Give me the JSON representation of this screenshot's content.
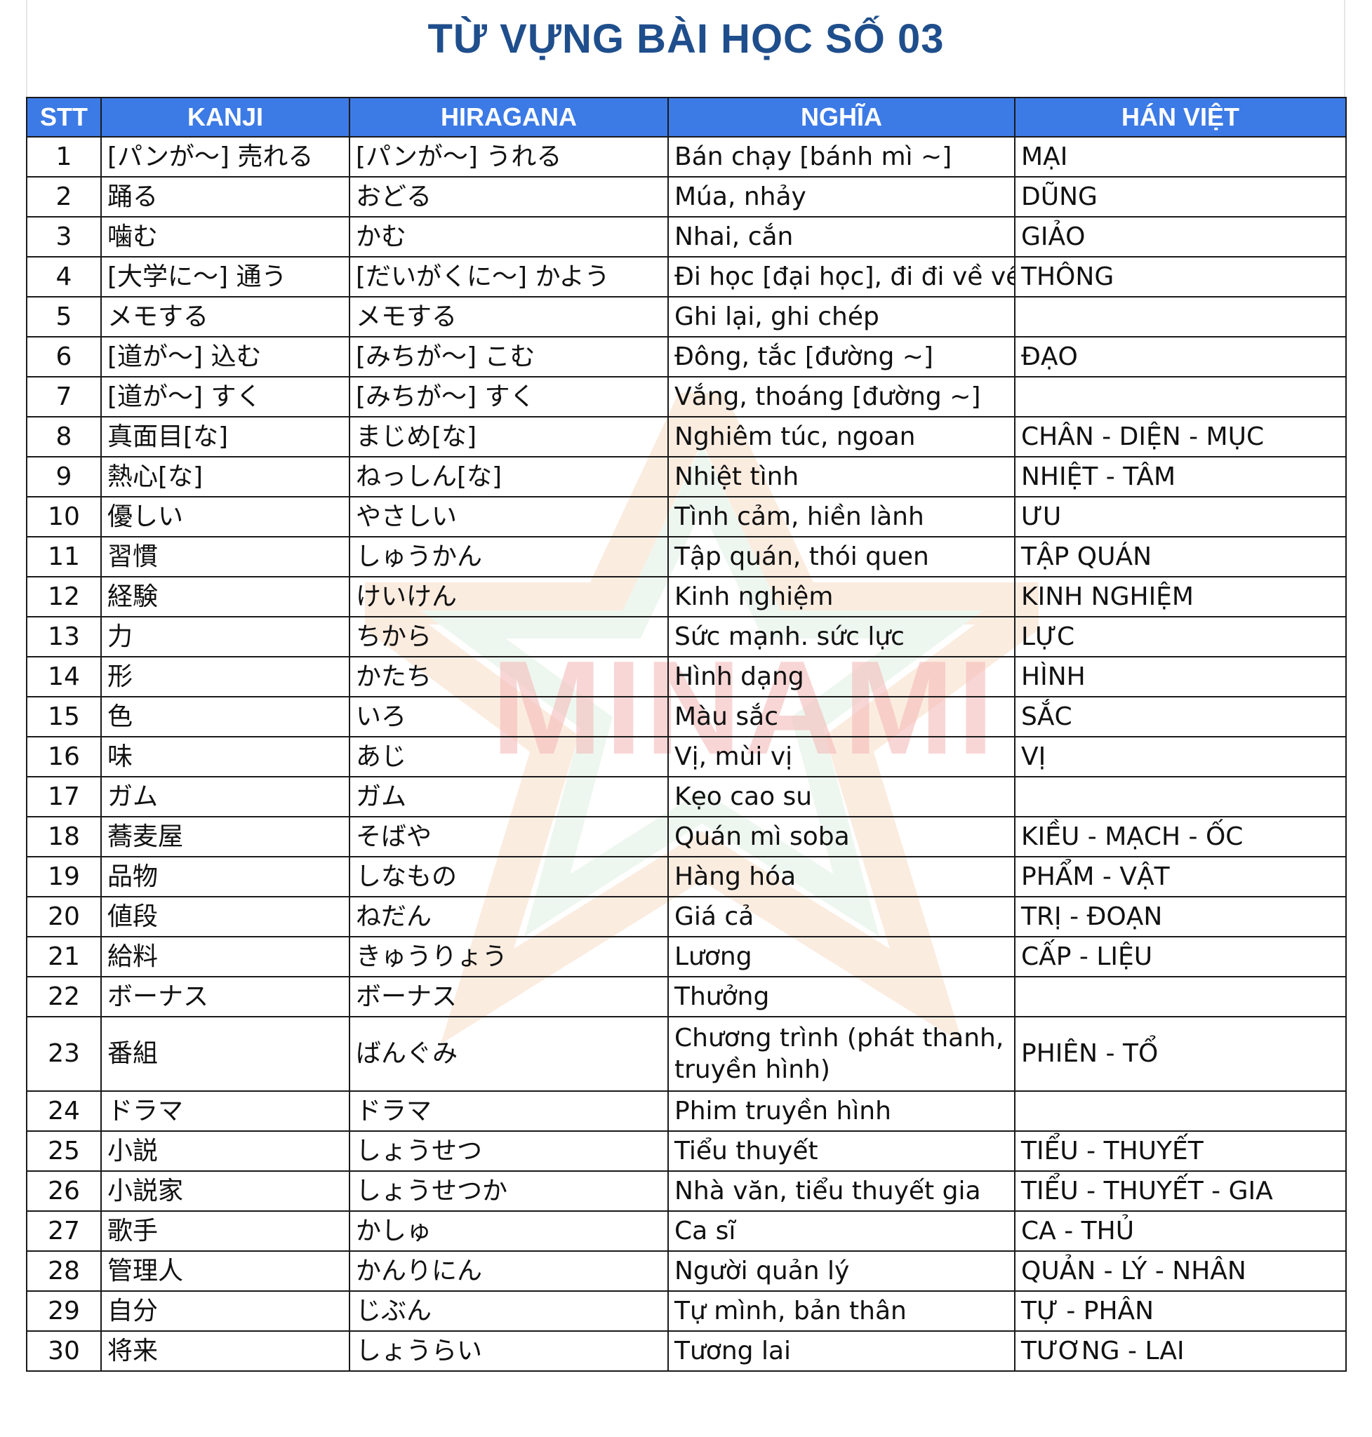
{
  "title": "TỪ VỰNG BÀI HỌC SỐ 03",
  "watermark": "MINAMI",
  "headers": [
    "STT",
    "KANJI",
    "HIRAGANA",
    "NGHĨA",
    "HÁN VIỆT"
  ],
  "rows": [
    {
      "stt": "1",
      "kanji": "[パンが～] 売れる",
      "hiragana": "[パンが～] うれる",
      "nghia": "Bán chạy [bánh mì ~]",
      "han_viet": "MẠI"
    },
    {
      "stt": "2",
      "kanji": "踊る",
      "hiragana": "おどる",
      "nghia": "Múa, nhảy",
      "han_viet": "DŨNG"
    },
    {
      "stt": "3",
      "kanji": "噛む",
      "hiragana": "かむ",
      "nghia": "Nhai, cắn",
      "han_viet": "GIẢO"
    },
    {
      "stt": "4",
      "kanji": "[大学に～] 通う",
      "hiragana": "[だいがくに～] かよう",
      "nghia": "Đi học [đại học], đi đi về về",
      "han_viet": "THÔNG"
    },
    {
      "stt": "5",
      "kanji": "メモする",
      "hiragana": "メモする",
      "nghia": "Ghi lại, ghi chép",
      "han_viet": ""
    },
    {
      "stt": "6",
      "kanji": "[道が～] 込む",
      "hiragana": "[みちが～] こむ",
      "nghia": "Đông, tắc [đường ~]",
      "han_viet": "ĐẠO"
    },
    {
      "stt": "7",
      "kanji": "[道が～] すく",
      "hiragana": "[みちが～] すく",
      "nghia": "Vắng, thoáng [đường ~]",
      "han_viet": ""
    },
    {
      "stt": "8",
      "kanji": "真面目[な]",
      "hiragana": "まじめ[な]",
      "nghia": "Nghiêm túc, ngoan",
      "han_viet": "CHÂN - DIỆN - MỤC"
    },
    {
      "stt": "9",
      "kanji": "熱心[な]",
      "hiragana": "ねっしん[な]",
      "nghia": "Nhiệt tình",
      "han_viet": "NHIỆT - TÂM"
    },
    {
      "stt": "10",
      "kanji": "優しい",
      "hiragana": "やさしい",
      "nghia": "Tình cảm, hiền lành",
      "han_viet": "ƯU"
    },
    {
      "stt": "11",
      "kanji": "習慣",
      "hiragana": "しゅうかん",
      "nghia": "Tập quán, thói quen",
      "han_viet": "TẬP QUÁN"
    },
    {
      "stt": "12",
      "kanji": "経験",
      "hiragana": "けいけん",
      "nghia": "Kinh nghiệm",
      "han_viet": "KINH NGHIỆM"
    },
    {
      "stt": "13",
      "kanji": "力",
      "hiragana": "ちから",
      "nghia": "Sức mạnh. sức lực",
      "han_viet": "LỰC"
    },
    {
      "stt": "14",
      "kanji": "形",
      "hiragana": "かたち",
      "nghia": "Hình dạng",
      "han_viet": "HÌNH"
    },
    {
      "stt": "15",
      "kanji": "色",
      "hiragana": "いろ",
      "nghia": "Màu sắc",
      "han_viet": "SẮC"
    },
    {
      "stt": "16",
      "kanji": "味",
      "hiragana": "あじ",
      "nghia": "Vị, mùi vị",
      "han_viet": "VỊ"
    },
    {
      "stt": "17",
      "kanji": "ガム",
      "hiragana": "ガム",
      "nghia": "Kẹo cao su",
      "han_viet": ""
    },
    {
      "stt": "18",
      "kanji": "蕎麦屋",
      "hiragana": "そばや",
      "nghia": "Quán mì soba",
      "han_viet": "KIỀU - MẠCH - ỐC"
    },
    {
      "stt": "19",
      "kanji": "品物",
      "hiragana": "しなもの",
      "nghia": "Hàng hóa",
      "han_viet": "PHẨM - VẬT"
    },
    {
      "stt": "20",
      "kanji": "値段",
      "hiragana": "ねだん",
      "nghia": "Giá cả",
      "han_viet": "TRỊ - ĐOẠN"
    },
    {
      "stt": "21",
      "kanji": "給料",
      "hiragana": "きゅうりょう",
      "nghia": "Lương",
      "han_viet": "CẤP - LIỆU"
    },
    {
      "stt": "22",
      "kanji": "ボーナス",
      "hiragana": "ボーナス",
      "nghia": "Thưởng",
      "han_viet": ""
    },
    {
      "stt": "23",
      "kanji": "番組",
      "hiragana": "ばんぐみ",
      "nghia": "Chương trình (phát thanh, truyền hình)",
      "han_viet": "PHIÊN - TỔ"
    },
    {
      "stt": "24",
      "kanji": "ドラマ",
      "hiragana": "ドラマ",
      "nghia": "Phim truyền hình",
      "han_viet": ""
    },
    {
      "stt": "25",
      "kanji": "小説",
      "hiragana": "しょうせつ",
      "nghia": "Tiểu thuyết",
      "han_viet": "TIỂU - THUYẾT"
    },
    {
      "stt": "26",
      "kanji": "小説家",
      "hiragana": "しょうせつか",
      "nghia": "Nhà văn, tiểu thuyết gia",
      "han_viet": "TIỂU - THUYẾT - GIA"
    },
    {
      "stt": "27",
      "kanji": "歌手",
      "hiragana": "かしゅ",
      "nghia": "Ca sĩ",
      "han_viet": "CA - THỦ"
    },
    {
      "stt": "28",
      "kanji": "管理人",
      "hiragana": "かんりにん",
      "nghia": "Người quản lý",
      "han_viet": "QUẢN - LÝ - NHÂN"
    },
    {
      "stt": "29",
      "kanji": "自分",
      "hiragana": "じぶん",
      "nghia": "Tự mình, bản thân",
      "han_viet": "TỰ - PHÂN"
    },
    {
      "stt": "30",
      "kanji": "将来",
      "hiragana": "しょうらい",
      "nghia": "Tương lai",
      "han_viet": "TƯƠNG - LAI"
    }
  ]
}
